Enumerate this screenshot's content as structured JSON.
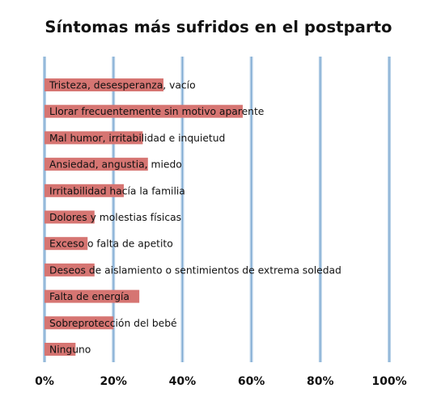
{
  "chart_data": {
    "type": "bar",
    "orientation": "horizontal",
    "title": "Síntomas más sufridos en el postparto",
    "xlabel": "",
    "ylabel": "",
    "categories": [
      "Tristeza, desesperanza, vacío",
      "Llorar frecuentemente sin motivo aparente",
      "Mal humor, irritabilidad e inquietud",
      "Ansiedad, angustia, miedo",
      "Irritabilidad hacía la familia",
      "Dolores y molestias físicas",
      "Exceso o falta de apetito",
      "Deseos de aislamiento o sentimientos de extrema soledad",
      "Falta de energía",
      "Sobreprotección del bebé",
      "Ninguno"
    ],
    "values": [
      34.5,
      57.5,
      28.5,
      30,
      23,
      14.5,
      12.5,
      14.5,
      27.5,
      20,
      9
    ],
    "xlim": [
      0,
      100
    ],
    "ticks": [
      "0%",
      "20%",
      "40%",
      "60%",
      "80%",
      "100%"
    ],
    "tick_values": [
      0,
      20,
      40,
      60,
      80,
      100
    ],
    "grid": true,
    "colors": {
      "bar": "#d67572",
      "grid": "#b9d2e8",
      "grid_core": "#7ea9d1"
    }
  }
}
